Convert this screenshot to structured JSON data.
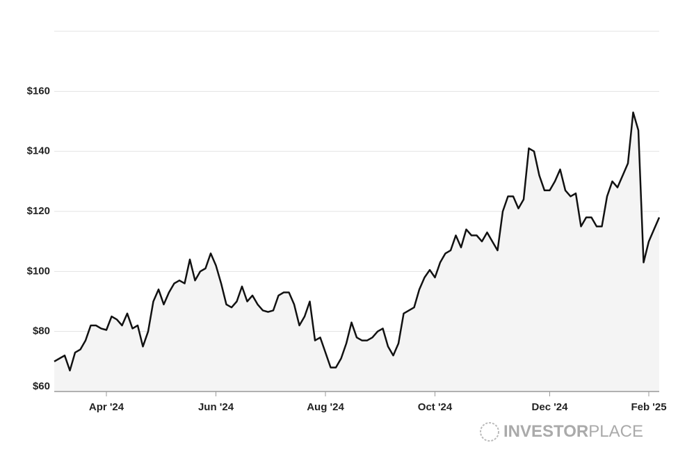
{
  "chart_data": {
    "type": "line",
    "categories": [
      null,
      null,
      null,
      null,
      null,
      null,
      null,
      null,
      null,
      null,
      "Apr '24",
      null,
      null,
      null,
      null,
      null,
      null,
      null,
      null,
      null,
      null,
      null,
      null,
      null,
      null,
      null,
      null,
      null,
      null,
      null,
      null,
      "Jun '24",
      null,
      null,
      null,
      null,
      null,
      null,
      null,
      null,
      null,
      null,
      null,
      null,
      null,
      null,
      null,
      null,
      null,
      null,
      null,
      null,
      "Aug '24",
      null,
      null,
      null,
      null,
      null,
      null,
      null,
      null,
      null,
      null,
      null,
      null,
      null,
      null,
      null,
      null,
      null,
      null,
      null,
      null,
      "Oct '24",
      null,
      null,
      null,
      null,
      null,
      null,
      null,
      null,
      null,
      null,
      null,
      null,
      null,
      null,
      null,
      null,
      null,
      null,
      null,
      null,
      null,
      "Dec '24",
      null,
      null,
      null,
      null,
      null,
      null,
      null,
      null,
      null,
      null,
      null,
      null,
      null,
      null,
      null,
      null,
      null,
      null,
      "Feb '25",
      null,
      null
    ],
    "values": [
      70,
      71,
      72,
      67,
      73,
      74,
      77,
      82,
      82,
      81,
      80.5,
      85,
      84,
      82,
      86,
      81,
      82,
      75,
      80,
      90,
      94,
      89,
      93,
      96,
      97,
      96,
      104,
      97,
      100,
      101,
      106,
      102,
      96,
      89,
      88,
      90,
      95,
      90,
      92,
      89,
      87,
      86.5,
      87,
      92,
      93,
      93,
      89,
      82,
      85,
      90,
      77,
      78,
      73,
      68,
      68,
      71,
      76,
      83,
      78,
      77,
      77,
      78,
      80,
      81,
      75,
      72,
      76,
      86,
      87,
      88,
      94,
      98,
      100.5,
      98,
      103,
      106,
      107,
      112,
      108,
      114,
      112,
      112,
      110,
      113,
      110,
      107,
      120,
      125,
      125,
      121,
      124,
      141,
      140,
      132,
      127,
      127,
      130,
      134,
      127,
      125,
      126,
      115,
      118,
      118,
      115,
      115,
      125,
      130,
      128,
      132,
      136,
      153,
      147,
      103,
      110,
      114,
      118
    ],
    "color": "#111111",
    "ylim": [
      60,
      180
    ],
    "yticks": [
      {
        "value": 60,
        "label": "$60"
      },
      {
        "value": 80,
        "label": "$80"
      },
      {
        "value": 100,
        "label": "$100"
      },
      {
        "value": 120,
        "label": "$120"
      },
      {
        "value": 140,
        "label": "$140"
      },
      {
        "value": 160,
        "label": "$160"
      }
    ],
    "grid": true,
    "watermark": {
      "bold": "INVESTOR",
      "light": "PLACE"
    }
  }
}
